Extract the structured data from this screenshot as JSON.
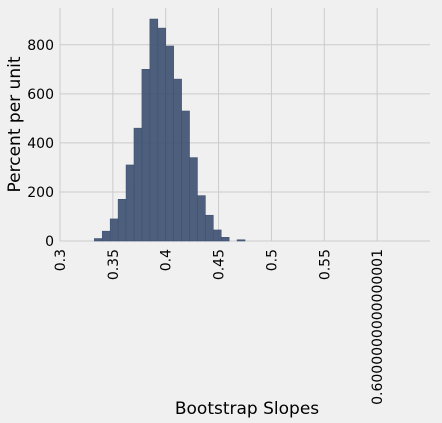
{
  "chart_data": {
    "type": "bar",
    "xlabel": "Bootstrap Slopes",
    "ylabel": "Percent per unit",
    "xlim": [
      0.3,
      0.65
    ],
    "ylim": [
      0,
      950
    ],
    "grid": true,
    "bar_color": "#3f5373",
    "x_ticks": [
      {
        "value": 0.3,
        "label": "0.3"
      },
      {
        "value": 0.35,
        "label": "0.35"
      },
      {
        "value": 0.4,
        "label": "0.4"
      },
      {
        "value": 0.45,
        "label": "0.45"
      },
      {
        "value": 0.5,
        "label": "0.5"
      },
      {
        "value": 0.55,
        "label": "0.55"
      },
      {
        "value": 0.6,
        "label": "0.6000000000000001"
      }
    ],
    "y_ticks": [
      {
        "value": 0,
        "label": "0"
      },
      {
        "value": 200,
        "label": "200"
      },
      {
        "value": 400,
        "label": "400"
      },
      {
        "value": 600,
        "label": "600"
      },
      {
        "value": 800,
        "label": "800"
      }
    ],
    "bins": [
      {
        "start": 0.3325,
        "end": 0.34,
        "value": 10
      },
      {
        "start": 0.34,
        "end": 0.3475,
        "value": 40
      },
      {
        "start": 0.3475,
        "end": 0.355,
        "value": 90
      },
      {
        "start": 0.355,
        "end": 0.3625,
        "value": 170
      },
      {
        "start": 0.3625,
        "end": 0.37,
        "value": 310
      },
      {
        "start": 0.37,
        "end": 0.3775,
        "value": 460
      },
      {
        "start": 0.3775,
        "end": 0.385,
        "value": 700
      },
      {
        "start": 0.385,
        "end": 0.3925,
        "value": 905
      },
      {
        "start": 0.3925,
        "end": 0.4,
        "value": 868
      },
      {
        "start": 0.4,
        "end": 0.4075,
        "value": 795
      },
      {
        "start": 0.4075,
        "end": 0.415,
        "value": 660
      },
      {
        "start": 0.415,
        "end": 0.4225,
        "value": 530
      },
      {
        "start": 0.4225,
        "end": 0.43,
        "value": 340
      },
      {
        "start": 0.43,
        "end": 0.4375,
        "value": 185
      },
      {
        "start": 0.4375,
        "end": 0.445,
        "value": 105
      },
      {
        "start": 0.445,
        "end": 0.4525,
        "value": 45
      },
      {
        "start": 0.4525,
        "end": 0.46,
        "value": 15
      },
      {
        "start": 0.4675,
        "end": 0.475,
        "value": 5
      }
    ]
  }
}
